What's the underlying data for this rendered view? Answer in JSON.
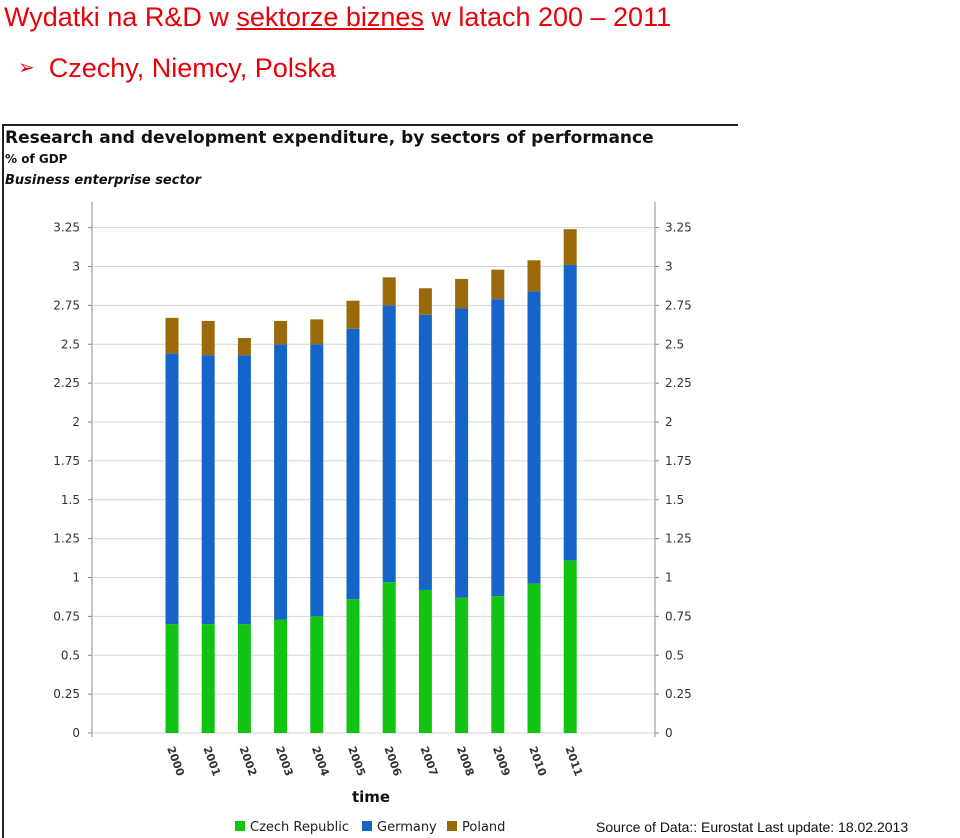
{
  "slide": {
    "title_pre": "Wydatki na R&D w ",
    "title_link": "sektorze biznes",
    "title_post": " w latach 200 – 2011",
    "bullet_arrow": "➢",
    "bullet_text": "Czechy, Niemcy, Polska",
    "source": "Source of Data:: Eurostat Last update: 18.02.2013"
  },
  "colors": {
    "czech": "#12c412",
    "germany": "#1565c8",
    "poland": "#9a6a0a",
    "grid": "#d6d6d6",
    "title_red": "#e8000b"
  },
  "chart_data": {
    "type": "bar",
    "stacked": true,
    "title": "Research and development expenditure, by sectors of performance",
    "subtitle_unit": "% of GDP",
    "subtitle_sector": "Business enterprise sector",
    "xlabel": "time",
    "ylabel": "",
    "ylim": [
      0,
      3.4
    ],
    "yticks": [
      "0",
      "0.25",
      "0.5",
      "0.75",
      "1",
      "1.25",
      "1.5",
      "1.75",
      "2",
      "2.25",
      "2.5",
      "2.75",
      "3",
      "3.25"
    ],
    "grid": true,
    "legend_position": "bottom",
    "categories": [
      "2000",
      "2001",
      "2002",
      "2003",
      "2004",
      "2005",
      "2006",
      "2007",
      "2008",
      "2009",
      "2010",
      "2011"
    ],
    "series": [
      {
        "name": "Czech Republic",
        "color": "#12c412",
        "values": [
          0.7,
          0.7,
          0.7,
          0.73,
          0.75,
          0.86,
          0.97,
          0.92,
          0.87,
          0.88,
          0.96,
          1.11
        ]
      },
      {
        "name": "Germany",
        "color": "#1565c8",
        "values": [
          1.74,
          1.73,
          1.73,
          1.77,
          1.75,
          1.74,
          1.78,
          1.77,
          1.86,
          1.91,
          1.88,
          1.9
        ]
      },
      {
        "name": "Poland",
        "color": "#9a6a0a",
        "values": [
          0.23,
          0.22,
          0.11,
          0.15,
          0.16,
          0.18,
          0.18,
          0.17,
          0.19,
          0.19,
          0.2,
          0.23
        ]
      }
    ]
  }
}
